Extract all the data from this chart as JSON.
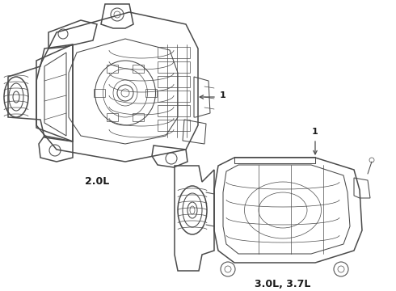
{
  "background_color": "#ffffff",
  "line_color": "#4a4a4a",
  "label_color": "#1a1a1a",
  "label_1_2L": "2.0L",
  "label_2_37L": "3.0L, 3.7L",
  "callout_number": "1",
  "fig_width": 4.9,
  "fig_height": 3.6,
  "dpi": 100,
  "lw_main": 1.1,
  "lw_med": 0.75,
  "lw_thin": 0.5
}
